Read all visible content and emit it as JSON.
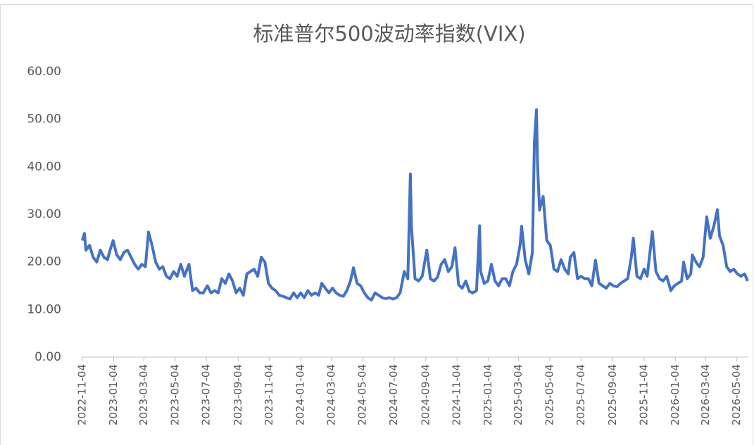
{
  "chart_data": {
    "type": "line",
    "title": "标准普尔500波动率指数(VIX)",
    "series": [
      {
        "name": "VIX",
        "color": "#4472c4",
        "values": [
          24.5,
          26,
          22.5,
          23.5,
          21,
          20,
          22.5,
          21,
          20.5,
          22.5,
          24.5,
          21.5,
          20.5,
          22,
          22.5,
          21,
          19.5,
          18.5,
          19.5,
          19,
          26.3,
          23.5,
          20,
          18.5,
          19,
          17,
          16.5,
          18,
          17,
          19.5,
          17,
          19.5,
          14,
          14.5,
          13.5,
          13.5,
          15,
          13.5,
          14,
          13.5,
          16.5,
          15.5,
          17.5,
          16,
          13.5,
          14.5,
          13,
          17.5,
          18,
          18.5,
          17,
          21,
          20,
          15.5,
          14.5,
          14,
          13,
          12.8,
          12.5,
          12.2,
          13.5,
          12.5,
          13.5,
          12.5,
          14,
          13,
          13.5,
          13,
          15.5,
          14.5,
          13.5,
          14.5,
          13.5,
          13,
          12.8,
          14,
          16,
          18.8,
          15.5,
          15,
          13.5,
          12.5,
          12,
          13.5,
          13,
          12.5,
          12.3,
          12.5,
          12.2,
          12.5,
          13.5,
          18,
          16.5,
          38.5,
          27.5,
          16.5,
          16,
          17,
          22.5,
          16.5,
          16,
          16.8,
          19.5,
          20.5,
          18,
          19,
          23,
          15.2,
          14.5,
          16,
          13.8,
          13.5,
          14,
          27.6,
          18,
          15.5,
          16,
          19.5,
          16,
          15,
          16.5,
          16.5,
          15,
          18,
          19.5,
          23.5,
          27.5,
          20.5,
          17.5,
          22,
          45.3,
          52,
          40.5,
          30.9,
          33.8,
          24.5,
          23.5,
          18.5,
          18,
          20.5,
          18.5,
          17.5,
          21,
          22,
          16.5,
          17,
          16.5,
          16.5,
          15,
          20.4,
          15.5,
          15,
          14.5,
          15.5,
          15,
          14.8,
          15.5,
          16,
          16.5,
          21,
          25,
          17,
          16.5,
          18.5,
          17,
          26.4,
          18,
          16.5,
          16,
          17,
          14,
          15,
          15.5,
          16,
          20,
          16.5,
          17.5,
          21.5,
          20,
          19,
          21,
          29.5,
          25,
          27.5,
          31,
          25.5,
          23.5,
          19,
          18,
          18.5,
          17.5,
          17,
          17.5,
          16
        ]
      }
    ],
    "x": [
      "2022-11-04",
      "2022-11-08",
      "2022-11-11",
      "2022-11-18",
      "2022-11-25",
      "2022-12-02",
      "2022-12-09",
      "2022-12-16",
      "2022-12-23",
      "2022-12-28",
      "2023-01-03",
      "2023-01-10",
      "2023-01-17",
      "2023-01-24",
      "2023-01-31",
      "2023-02-07",
      "2023-02-14",
      "2023-02-21",
      "2023-02-28",
      "2023-03-07",
      "2023-03-13",
      "2023-03-20",
      "2023-03-27",
      "2023-04-03",
      "2023-04-10",
      "2023-04-17",
      "2023-04-24",
      "2023-05-01",
      "2023-05-08",
      "2023-05-15",
      "2023-05-22",
      "2023-05-31",
      "2023-06-07",
      "2023-06-14",
      "2023-06-21",
      "2023-06-28",
      "2023-07-06",
      "2023-07-13",
      "2023-07-20",
      "2023-07-27",
      "2023-08-03",
      "2023-08-10",
      "2023-08-17",
      "2023-08-24",
      "2023-08-31",
      "2023-09-07",
      "2023-09-14",
      "2023-09-21",
      "2023-09-28",
      "2023-10-05",
      "2023-10-12",
      "2023-10-19",
      "2023-10-26",
      "2023-11-02",
      "2023-11-09",
      "2023-11-16",
      "2023-11-23",
      "2023-11-30",
      "2023-12-07",
      "2023-12-14",
      "2023-12-21",
      "2023-12-28",
      "2024-01-04",
      "2024-01-11",
      "2024-01-18",
      "2024-01-25",
      "2024-02-01",
      "2024-02-08",
      "2024-02-14",
      "2024-02-21",
      "2024-02-28",
      "2024-03-06",
      "2024-03-13",
      "2024-03-20",
      "2024-03-27",
      "2024-04-03",
      "2024-04-10",
      "2024-04-16",
      "2024-04-23",
      "2024-04-30",
      "2024-05-07",
      "2024-05-14",
      "2024-05-21",
      "2024-05-28",
      "2024-06-04",
      "2024-06-11",
      "2024-06-18",
      "2024-06-25",
      "2024-07-02",
      "2024-07-09",
      "2024-07-16",
      "2024-07-24",
      "2024-07-31",
      "2024-08-05",
      "2024-08-07",
      "2024-08-14",
      "2024-08-21",
      "2024-08-28",
      "2024-09-06",
      "2024-09-13",
      "2024-09-20",
      "2024-09-27",
      "2024-10-04",
      "2024-10-11",
      "2024-10-18",
      "2024-10-25",
      "2024-10-31",
      "2024-11-07",
      "2024-11-14",
      "2024-11-21",
      "2024-11-28",
      "2024-12-05",
      "2024-12-12",
      "2024-12-18",
      "2024-12-20",
      "2024-12-27",
      "2025-01-03",
      "2025-01-10",
      "2025-01-17",
      "2025-01-24",
      "2025-01-31",
      "2025-02-07",
      "2025-02-14",
      "2025-02-21",
      "2025-02-28",
      "2025-03-07",
      "2025-03-10",
      "2025-03-17",
      "2025-03-24",
      "2025-03-31",
      "2025-04-04",
      "2025-04-08",
      "2025-04-10",
      "2025-04-14",
      "2025-04-21",
      "2025-04-28",
      "2025-05-05",
      "2025-05-12",
      "2025-05-19",
      "2025-05-26",
      "2025-06-02",
      "2025-06-09",
      "2025-06-13",
      "2025-06-20",
      "2025-06-27",
      "2025-07-04",
      "2025-07-11",
      "2025-07-18",
      "2025-07-25",
      "2025-08-01",
      "2025-08-08",
      "2025-08-15",
      "2025-08-22",
      "2025-08-29",
      "2025-09-05",
      "2025-09-12",
      "2025-09-19",
      "2025-09-26",
      "2025-10-03",
      "2025-10-10",
      "2025-10-14",
      "2025-10-21",
      "2025-10-28",
      "2025-11-04",
      "2025-11-10",
      "2025-11-20",
      "2025-11-27",
      "2025-12-04",
      "2025-12-11",
      "2025-12-18",
      "2025-12-26",
      "2026-01-02",
      "2026-01-09",
      "2026-01-16",
      "2026-01-20",
      "2026-01-27",
      "2026-02-03",
      "2026-02-06",
      "2026-02-13",
      "2026-02-20",
      "2026-02-27",
      "2026-03-06",
      "2026-03-13",
      "2026-03-20",
      "2026-03-27",
      "2026-03-31",
      "2026-04-07",
      "2026-04-14",
      "2026-04-21",
      "2026-04-28",
      "2026-05-05",
      "2026-05-12",
      "2026-05-19",
      "2026-05-25"
    ],
    "xlim": [
      "2022-11-04",
      "2026-05-25"
    ],
    "xticks": [
      "2022-11-04",
      "2023-01-04",
      "2023-03-04",
      "2023-05-04",
      "2023-07-04",
      "2023-09-04",
      "2023-11-04",
      "2024-01-04",
      "2024-03-04",
      "2024-05-04",
      "2024-07-04",
      "2024-09-04",
      "2024-11-04",
      "2025-01-04",
      "2025-03-04",
      "2025-05-04",
      "2025-07-04",
      "2025-09-04",
      "2025-11-04",
      "2026-01-04",
      "2026-03-04",
      "2026-05-04"
    ],
    "ylim": [
      0,
      60
    ],
    "yticks": [
      {
        "value": 0,
        "label": "0.00"
      },
      {
        "value": 10,
        "label": "10.00"
      },
      {
        "value": 20,
        "label": "20.00"
      },
      {
        "value": 30,
        "label": "30.00"
      },
      {
        "value": 40,
        "label": "40.00"
      },
      {
        "value": 50,
        "label": "50.00"
      },
      {
        "value": 60,
        "label": "60.00"
      }
    ],
    "grid": false
  }
}
